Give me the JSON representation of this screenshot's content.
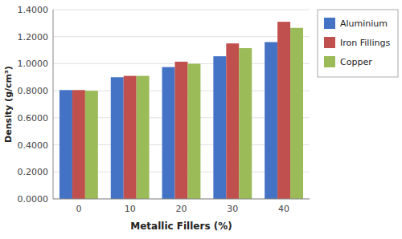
{
  "chart_data": {
    "type": "bar",
    "xlabel": "Metallic Fillers (%)",
    "ylabel": "Density (g/cm³)",
    "categories": [
      "0",
      "10",
      "20",
      "30",
      "40"
    ],
    "series": [
      {
        "name": "Aluminium",
        "color": "#4472C4",
        "values": [
          0.805,
          0.9,
          0.975,
          1.055,
          1.16
        ]
      },
      {
        "name": "Iron Fillings",
        "color": "#C0504D",
        "values": [
          0.805,
          0.91,
          1.015,
          1.15,
          1.31
        ]
      },
      {
        "name": "Copper",
        "color": "#9BBB59",
        "values": [
          0.8,
          0.91,
          1.0,
          1.115,
          1.265
        ]
      }
    ],
    "ylim": [
      0.0,
      1.4
    ],
    "yticks": [
      {
        "value": 0.0,
        "label": "0.0000"
      },
      {
        "value": 0.2,
        "label": "0.2000"
      },
      {
        "value": 0.4,
        "label": "0.4000"
      },
      {
        "value": 0.6,
        "label": "0.6000"
      },
      {
        "value": 0.8,
        "label": "0.8000"
      },
      {
        "value": 1.0,
        "label": "1.0000"
      },
      {
        "value": 1.2,
        "label": "1.2000"
      },
      {
        "value": 1.4,
        "label": "1.4000"
      }
    ],
    "grid": true,
    "legend": "right"
  }
}
